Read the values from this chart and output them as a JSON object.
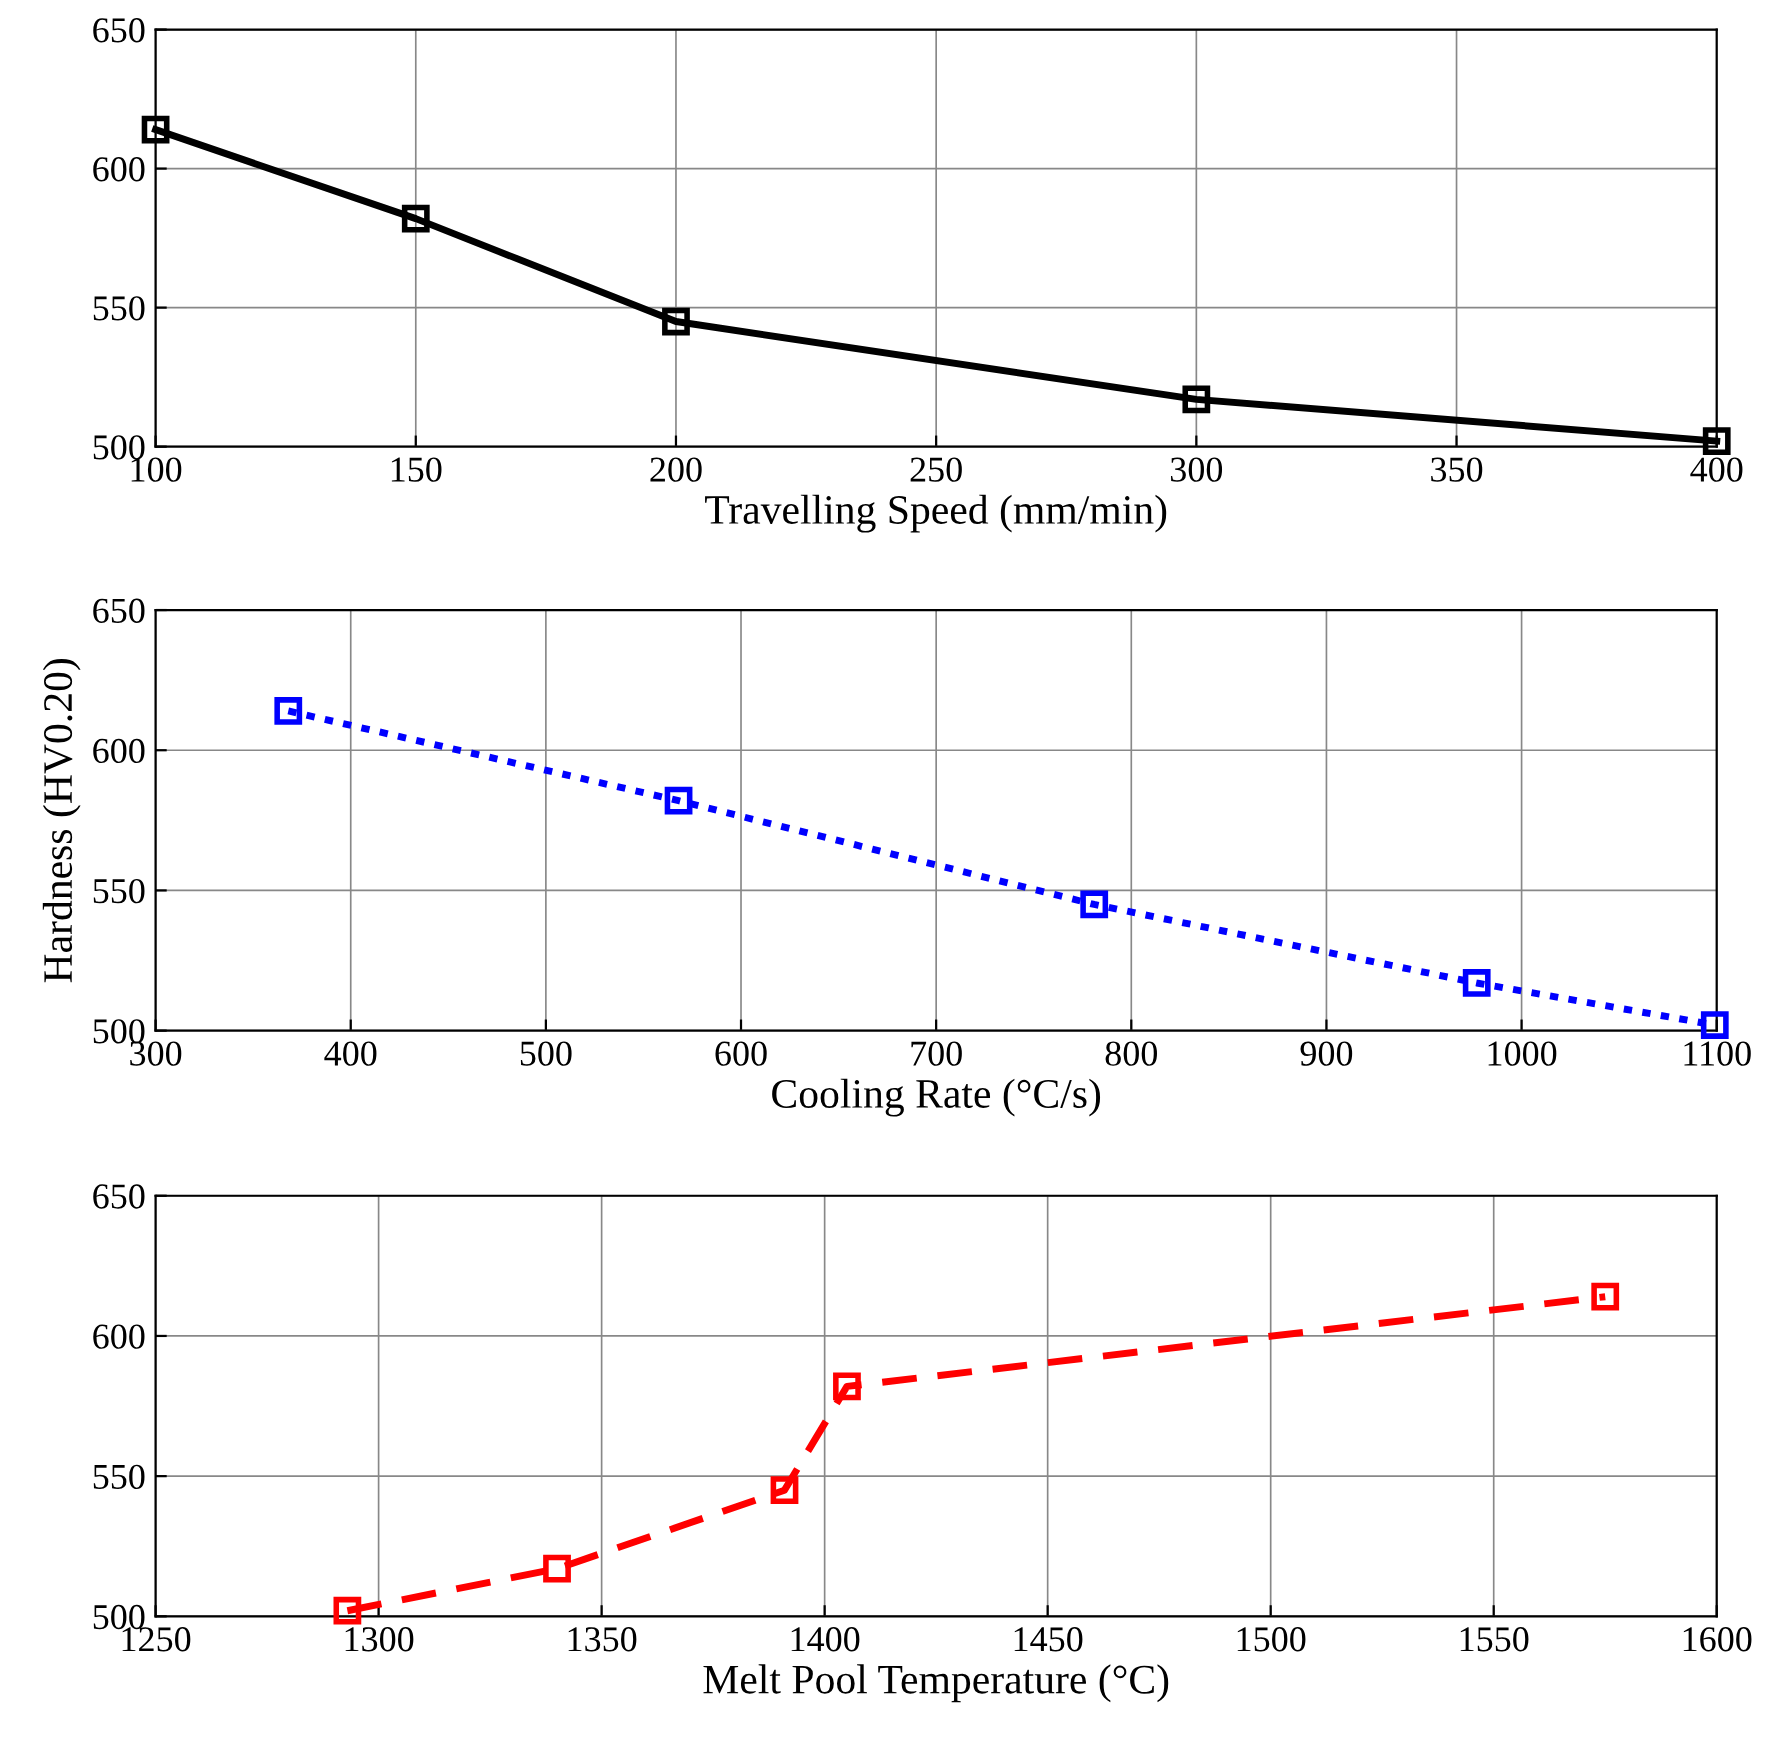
{
  "chart_data": [
    {
      "type": "line",
      "xlabel": "Travelling Speed (mm/min)",
      "x": [
        100,
        150,
        200,
        300,
        400
      ],
      "xlim": [
        100,
        400
      ],
      "xticks": [
        100,
        150,
        200,
        250,
        300,
        350,
        400
      ],
      "ylim": [
        500,
        650
      ],
      "yticks": [
        500,
        550,
        600,
        650
      ],
      "grid": true,
      "marker": "square",
      "line_style": "solid",
      "series": [
        {
          "color": "#000000",
          "values": [
            614,
            582,
            545,
            517,
            502
          ]
        }
      ]
    },
    {
      "type": "line",
      "xlabel": "Cooling Rate (°C/s)",
      "ylabel": "Hardness (HV0.20)",
      "x": [
        368,
        568,
        781,
        977,
        1099
      ],
      "xlim": [
        300,
        1100
      ],
      "xticks": [
        300,
        400,
        500,
        600,
        700,
        800,
        900,
        1000,
        1100
      ],
      "ylim": [
        500,
        650
      ],
      "yticks": [
        500,
        550,
        600,
        650
      ],
      "grid": true,
      "marker": "square",
      "line_style": "dotted",
      "series": [
        {
          "color": "#0000ff",
          "values": [
            614,
            582,
            545,
            517,
            502
          ]
        }
      ]
    },
    {
      "type": "line",
      "xlabel": "Melt Pool Temperature (°C)",
      "x": [
        1293,
        1340,
        1391,
        1405,
        1575
      ],
      "xlim": [
        1250,
        1600
      ],
      "xticks": [
        1250,
        1300,
        1350,
        1400,
        1450,
        1500,
        1550,
        1600
      ],
      "ylim": [
        500,
        650
      ],
      "yticks": [
        500,
        550,
        600,
        650
      ],
      "grid": true,
      "marker": "square",
      "line_style": "dashed",
      "series": [
        {
          "color": "#ff0000",
          "values": [
            502,
            517,
            545,
            582,
            614
          ]
        }
      ]
    }
  ]
}
